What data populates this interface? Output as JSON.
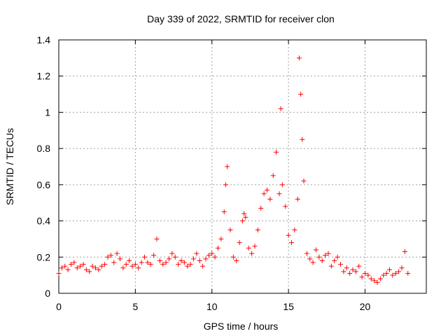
{
  "chart_data": {
    "type": "scatter",
    "title": "Day 339 of 2022, SRMTID for receiver clon",
    "xlabel": "GPS time / hours",
    "ylabel": "SRMTID / TECUs",
    "xlim": [
      0,
      24
    ],
    "ylim": [
      0,
      1.4
    ],
    "xticks": [
      0,
      5,
      10,
      15,
      20
    ],
    "yticks": [
      0,
      0.2,
      0.4,
      0.6,
      0.8,
      1,
      1.2,
      1.4
    ],
    "xtick_labels": [
      "0",
      "5",
      "10",
      "15",
      "20"
    ],
    "ytick_labels": [
      "0",
      "0.2",
      "0.4",
      "0.6",
      "0.8",
      "1",
      "1.2",
      "1.4"
    ],
    "marker": "+",
    "color": "#ff0000",
    "grid": true,
    "series": [
      {
        "name": "SRMTID",
        "x": [
          0.0,
          0.2,
          0.4,
          0.6,
          0.8,
          1.0,
          1.2,
          1.4,
          1.6,
          1.8,
          2.0,
          2.2,
          2.4,
          2.6,
          2.8,
          3.0,
          3.2,
          3.4,
          3.6,
          3.8,
          4.0,
          4.2,
          4.4,
          4.6,
          4.8,
          5.0,
          5.2,
          5.4,
          5.6,
          5.8,
          6.0,
          6.2,
          6.4,
          6.6,
          6.8,
          7.0,
          7.2,
          7.4,
          7.6,
          7.8,
          8.0,
          8.2,
          8.4,
          8.6,
          8.8,
          9.0,
          9.2,
          9.4,
          9.6,
          9.8,
          10.0,
          10.2,
          10.4,
          10.6,
          10.8,
          10.9,
          11.0,
          11.2,
          11.4,
          11.6,
          11.8,
          12.0,
          12.1,
          12.2,
          12.4,
          12.6,
          12.8,
          13.0,
          13.2,
          13.4,
          13.6,
          13.8,
          14.0,
          14.2,
          14.4,
          14.5,
          14.6,
          14.8,
          15.0,
          15.2,
          15.4,
          15.6,
          15.7,
          15.8,
          15.9,
          16.0,
          16.2,
          16.4,
          16.6,
          16.8,
          17.0,
          17.2,
          17.4,
          17.6,
          17.8,
          18.0,
          18.2,
          18.4,
          18.6,
          18.8,
          19.0,
          19.2,
          19.4,
          19.6,
          19.8,
          20.0,
          20.2,
          20.4,
          20.6,
          20.8,
          21.0,
          21.2,
          21.4,
          21.6,
          21.8,
          22.0,
          22.2,
          22.4,
          22.6,
          22.8
        ],
        "y": [
          0.11,
          0.14,
          0.15,
          0.13,
          0.16,
          0.17,
          0.14,
          0.15,
          0.16,
          0.13,
          0.12,
          0.15,
          0.14,
          0.13,
          0.15,
          0.16,
          0.2,
          0.21,
          0.17,
          0.22,
          0.19,
          0.14,
          0.16,
          0.18,
          0.15,
          0.16,
          0.14,
          0.17,
          0.2,
          0.17,
          0.16,
          0.21,
          0.3,
          0.18,
          0.16,
          0.17,
          0.19,
          0.22,
          0.2,
          0.16,
          0.18,
          0.17,
          0.15,
          0.16,
          0.19,
          0.22,
          0.18,
          0.15,
          0.19,
          0.21,
          0.22,
          0.2,
          0.25,
          0.3,
          0.45,
          0.6,
          0.7,
          0.35,
          0.2,
          0.18,
          0.28,
          0.4,
          0.44,
          0.42,
          0.25,
          0.22,
          0.26,
          0.35,
          0.47,
          0.55,
          0.57,
          0.52,
          0.65,
          0.78,
          0.55,
          1.02,
          0.6,
          0.48,
          0.32,
          0.28,
          0.35,
          0.52,
          1.3,
          1.1,
          0.85,
          0.62,
          0.22,
          0.19,
          0.17,
          0.24,
          0.2,
          0.18,
          0.21,
          0.22,
          0.15,
          0.18,
          0.2,
          0.16,
          0.12,
          0.14,
          0.11,
          0.13,
          0.12,
          0.15,
          0.09,
          0.11,
          0.1,
          0.08,
          0.07,
          0.06,
          0.08,
          0.1,
          0.11,
          0.13,
          0.1,
          0.11,
          0.12,
          0.14,
          0.23,
          0.11
        ]
      }
    ]
  }
}
